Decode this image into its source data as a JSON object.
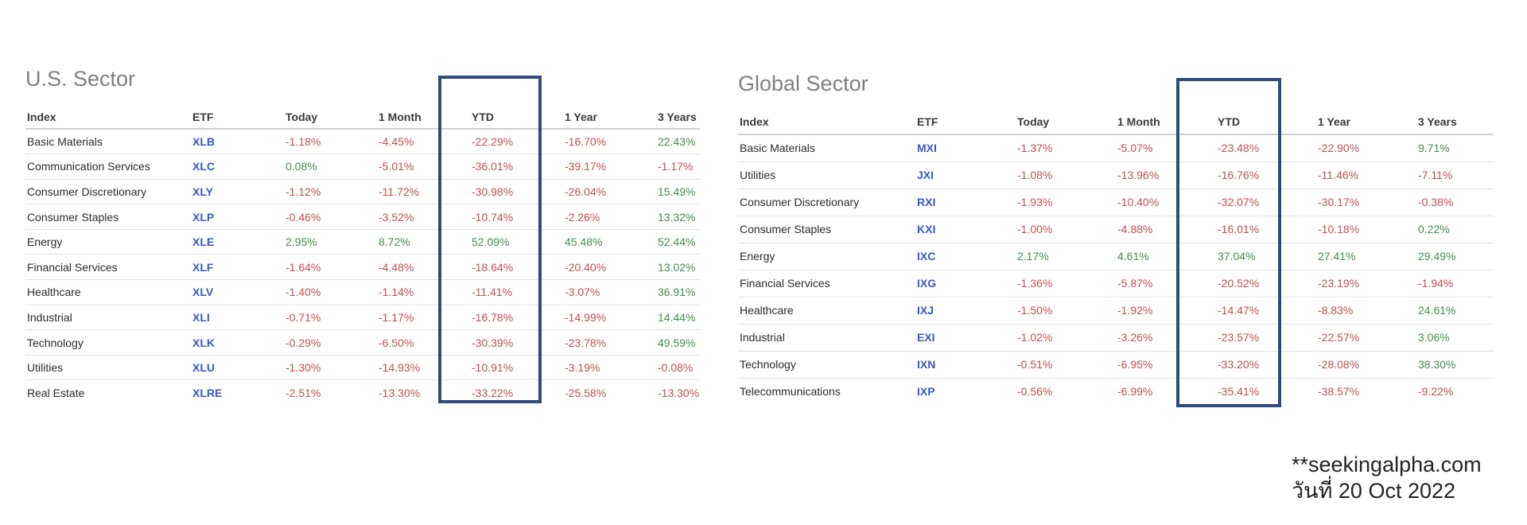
{
  "us": {
    "title": "U.S. Sector",
    "headers": [
      "Index",
      "ETF",
      "Today",
      "1 Month",
      "YTD",
      "1 Year",
      "3 Years"
    ],
    "rows": [
      {
        "index": "Basic Materials",
        "etf": "XLB",
        "today": "-1.18%",
        "month": "-4.45%",
        "ytd": "-22.29%",
        "year": "-16.70%",
        "years3": "22.43%"
      },
      {
        "index": "Communication Services",
        "etf": "XLC",
        "today": "0.08%",
        "month": "-5.01%",
        "ytd": "-36.01%",
        "year": "-39.17%",
        "years3": "-1.17%"
      },
      {
        "index": "Consumer Discretionary",
        "etf": "XLY",
        "today": "-1.12%",
        "month": "-11.72%",
        "ytd": "-30.98%",
        "year": "-26.04%",
        "years3": "15.49%"
      },
      {
        "index": "Consumer Staples",
        "etf": "XLP",
        "today": "-0.46%",
        "month": "-3.52%",
        "ytd": "-10.74%",
        "year": "-2.26%",
        "years3": "13.32%"
      },
      {
        "index": "Energy",
        "etf": "XLE",
        "today": "2.95%",
        "month": "8.72%",
        "ytd": "52.09%",
        "year": "45.48%",
        "years3": "52.44%"
      },
      {
        "index": "Financial Services",
        "etf": "XLF",
        "today": "-1.64%",
        "month": "-4.48%",
        "ytd": "-18.64%",
        "year": "-20.40%",
        "years3": "13.02%"
      },
      {
        "index": "Healthcare",
        "etf": "XLV",
        "today": "-1.40%",
        "month": "-1.14%",
        "ytd": "-11.41%",
        "year": "-3.07%",
        "years3": "36.91%"
      },
      {
        "index": "Industrial",
        "etf": "XLI",
        "today": "-0.71%",
        "month": "-1.17%",
        "ytd": "-16.78%",
        "year": "-14.99%",
        "years3": "14.44%"
      },
      {
        "index": "Technology",
        "etf": "XLK",
        "today": "-0.29%",
        "month": "-6.50%",
        "ytd": "-30.39%",
        "year": "-23.78%",
        "years3": "49.59%"
      },
      {
        "index": "Utilities",
        "etf": "XLU",
        "today": "-1.30%",
        "month": "-14.93%",
        "ytd": "-10.91%",
        "year": "-3.19%",
        "years3": "-0.08%"
      },
      {
        "index": "Real Estate",
        "etf": "XLRE",
        "today": "-2.51%",
        "month": "-13.30%",
        "ytd": "-33.22%",
        "year": "-25.58%",
        "years3": "-13.30%"
      }
    ]
  },
  "global": {
    "title": "Global Sector",
    "headers": [
      "Index",
      "ETF",
      "Today",
      "1 Month",
      "YTD",
      "1 Year",
      "3 Years"
    ],
    "rows": [
      {
        "index": "Basic Materials",
        "etf": "MXI",
        "today": "-1.37%",
        "month": "-5.07%",
        "ytd": "-23.48%",
        "year": "-22.90%",
        "years3": "9.71%"
      },
      {
        "index": "Utilities",
        "etf": "JXI",
        "today": "-1.08%",
        "month": "-13.96%",
        "ytd": "-16.76%",
        "year": "-11.46%",
        "years3": "-7.11%"
      },
      {
        "index": "Consumer Discretionary",
        "etf": "RXI",
        "today": "-1.93%",
        "month": "-10.40%",
        "ytd": "-32.07%",
        "year": "-30.17%",
        "years3": "-0.38%"
      },
      {
        "index": "Consumer Staples",
        "etf": "KXI",
        "today": "-1.00%",
        "month": "-4.88%",
        "ytd": "-16.01%",
        "year": "-10.18%",
        "years3": "0.22%"
      },
      {
        "index": "Energy",
        "etf": "IXC",
        "today": "2.17%",
        "month": "4.61%",
        "ytd": "37.04%",
        "year": "27.41%",
        "years3": "29.49%"
      },
      {
        "index": "Financial Services",
        "etf": "IXG",
        "today": "-1.36%",
        "month": "-5.87%",
        "ytd": "-20.52%",
        "year": "-23.19%",
        "years3": "-1.94%"
      },
      {
        "index": "Healthcare",
        "etf": "IXJ",
        "today": "-1.50%",
        "month": "-1.92%",
        "ytd": "-14.47%",
        "year": "-8.83%",
        "years3": "24.61%"
      },
      {
        "index": "Industrial",
        "etf": "EXI",
        "today": "-1.02%",
        "month": "-3.26%",
        "ytd": "-23.57%",
        "year": "-22.57%",
        "years3": "3.06%"
      },
      {
        "index": "Technology",
        "etf": "IXN",
        "today": "-0.51%",
        "month": "-6.95%",
        "ytd": "-33.20%",
        "year": "-28.08%",
        "years3": "38.30%"
      },
      {
        "index": "Telecommunications",
        "etf": "IXP",
        "today": "-0.56%",
        "month": "-6.99%",
        "ytd": "-35.41%",
        "year": "-38.57%",
        "years3": "-9.22%"
      }
    ]
  },
  "colors": {
    "negative": "#c0504d",
    "positive": "#3f8f4a",
    "etf_link": "#3559c7",
    "highlight_box": "#2f4a7c"
  },
  "credit": {
    "source": "**seekingalpha.com",
    "date": "วันที่ 20 Oct 2022"
  }
}
